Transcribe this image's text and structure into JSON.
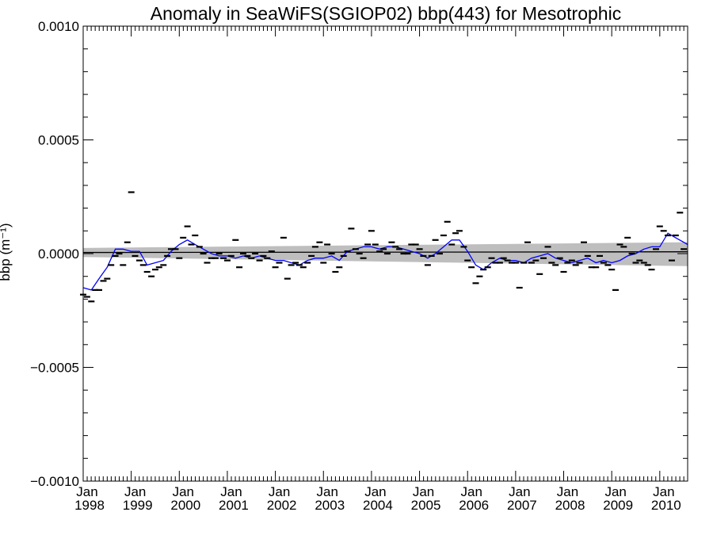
{
  "chart_data": {
    "type": "scatter",
    "title": "Anomaly in SeaWiFS(SGIOP02) bbp(443) for Mesotrophic",
    "ylabel": "bbp (m⁻¹)",
    "xlabel": "",
    "ylim": [
      -0.001,
      0.001
    ],
    "xlim": [
      1998.0,
      2010.58
    ],
    "y_ticks": [
      {
        "value": 0.001,
        "label": "0.0010"
      },
      {
        "value": 0.0005,
        "label": "0.0005"
      },
      {
        "value": 0.0,
        "label": "0.0000"
      },
      {
        "value": -0.0005,
        "label": "−0.0005"
      },
      {
        "value": -0.001,
        "label": "−0.0010"
      }
    ],
    "x_ticks": [
      {
        "value": 1998,
        "month": "Jan",
        "year": "1998"
      },
      {
        "value": 1999,
        "month": "Jan",
        "year": "1999"
      },
      {
        "value": 2000,
        "month": "Jan",
        "year": "2000"
      },
      {
        "value": 2001,
        "month": "Jan",
        "year": "2001"
      },
      {
        "value": 2002,
        "month": "Jan",
        "year": "2002"
      },
      {
        "value": 2003,
        "month": "Jan",
        "year": "2003"
      },
      {
        "value": 2004,
        "month": "Jan",
        "year": "2004"
      },
      {
        "value": 2005,
        "month": "Jan",
        "year": "2005"
      },
      {
        "value": 2006,
        "month": "Jan",
        "year": "2006"
      },
      {
        "value": 2007,
        "month": "Jan",
        "year": "2007"
      },
      {
        "value": 2008,
        "month": "Jan",
        "year": "2008"
      },
      {
        "value": 2009,
        "month": "Jan",
        "year": "2009"
      },
      {
        "value": 2010,
        "month": "Jan",
        "year": "2010"
      }
    ],
    "colors": {
      "points": "#000000",
      "smooth": "#0000ff",
      "trend": "#000000",
      "band": "#bebebe"
    },
    "series": [
      {
        "kind": "monthly-anomaly-markers",
        "x": [
          1998.0,
          1998.08,
          1998.17,
          1998.25,
          1998.33,
          1998.42,
          1998.5,
          1998.58,
          1998.67,
          1998.75,
          1998.83,
          1998.92,
          1999.0,
          1999.08,
          1999.17,
          1999.25,
          1999.33,
          1999.42,
          1999.5,
          1999.58,
          1999.67,
          1999.75,
          1999.83,
          1999.92,
          2000.0,
          2000.08,
          2000.17,
          2000.25,
          2000.33,
          2000.42,
          2000.5,
          2000.58,
          2000.67,
          2000.75,
          2000.83,
          2000.92,
          2001.0,
          2001.08,
          2001.17,
          2001.25,
          2001.33,
          2001.42,
          2001.5,
          2001.58,
          2001.67,
          2001.75,
          2001.83,
          2001.92,
          2002.0,
          2002.08,
          2002.17,
          2002.25,
          2002.33,
          2002.42,
          2002.5,
          2002.58,
          2002.67,
          2002.75,
          2002.83,
          2002.92,
          2003.0,
          2003.08,
          2003.17,
          2003.25,
          2003.33,
          2003.42,
          2003.5,
          2003.58,
          2003.67,
          2003.75,
          2003.83,
          2003.92,
          2004.0,
          2004.08,
          2004.17,
          2004.25,
          2004.33,
          2004.42,
          2004.5,
          2004.58,
          2004.67,
          2004.75,
          2004.83,
          2004.92,
          2005.0,
          2005.08,
          2005.17,
          2005.25,
          2005.33,
          2005.42,
          2005.5,
          2005.58,
          2005.67,
          2005.75,
          2005.83,
          2005.92,
          2006.0,
          2006.08,
          2006.17,
          2006.25,
          2006.33,
          2006.42,
          2006.5,
          2006.58,
          2006.67,
          2006.75,
          2006.83,
          2006.92,
          2007.0,
          2007.08,
          2007.17,
          2007.25,
          2007.33,
          2007.42,
          2007.5,
          2007.58,
          2007.67,
          2007.75,
          2007.83,
          2007.92,
          2008.0,
          2008.08,
          2008.17,
          2008.25,
          2008.33,
          2008.42,
          2008.5,
          2008.58,
          2008.67,
          2008.75,
          2008.83,
          2008.92,
          2009.0,
          2009.08,
          2009.17,
          2009.25,
          2009.33,
          2009.42,
          2009.5,
          2009.58,
          2009.67,
          2009.75,
          2009.83,
          2009.92,
          2010.0,
          2010.08,
          2010.17,
          2010.25,
          2010.33,
          2010.42,
          2010.5
        ],
        "y": [
          -0.00018,
          -0.00019,
          -0.00021,
          -0.00016,
          -0.00016,
          -0.00012,
          -0.00011,
          -5e-05,
          -1e-05,
          0.0,
          -5e-05,
          5e-05,
          0.00027,
          -1e-05,
          -3e-05,
          -5e-05,
          -8e-05,
          -0.0001,
          -7e-05,
          -6e-05,
          -5e-05,
          -1e-05,
          2e-05,
          2e-05,
          -2e-05,
          7e-05,
          0.00012,
          4e-05,
          8e-05,
          3e-05,
          0.0,
          -4e-05,
          -2e-05,
          -2e-05,
          0.0,
          -2e-05,
          -3e-05,
          -1e-05,
          6e-05,
          -6e-05,
          0.0,
          -1e-05,
          -2e-05,
          0.0,
          -3e-05,
          -1e-05,
          -2e-05,
          1e-05,
          -6e-05,
          -4e-05,
          7e-05,
          -0.00011,
          -5e-05,
          -4e-05,
          -5e-05,
          -6e-05,
          -4e-05,
          -1e-05,
          3e-05,
          5e-05,
          -4e-05,
          4e-05,
          0.0,
          -8e-05,
          -6e-05,
          -1e-05,
          1e-05,
          0.00011,
          2e-05,
          0.0,
          -2e-05,
          4e-05,
          0.0001,
          4e-05,
          1e-05,
          2e-05,
          0.0,
          5e-05,
          3e-05,
          2e-05,
          0.0,
          0.0,
          4e-05,
          4e-05,
          2e-05,
          -1e-05,
          -5e-05,
          -1e-05,
          6e-05,
          0.0,
          8e-05,
          0.00014,
          4e-05,
          9e-05,
          0.0001,
          3e-05,
          -3e-05,
          -6e-05,
          -0.00013,
          -0.0001,
          -7e-05,
          -6e-05,
          -2e-05,
          -4e-05,
          -4e-05,
          -2e-05,
          -3e-05,
          -4e-05,
          -4e-05,
          -0.00015,
          -4e-05,
          5e-05,
          -4e-05,
          -3e-05,
          -9e-05,
          -2e-05,
          3e-05,
          -4e-05,
          -5e-05,
          -2e-05,
          -8e-05,
          -4e-05,
          -3e-05,
          -5e-05,
          -4e-05,
          5e-05,
          -1e-05,
          -6e-05,
          -6e-05,
          -1e-05,
          -4e-05,
          -5e-05,
          -7e-05,
          -0.00016,
          4e-05,
          3e-05,
          7e-05,
          0.0,
          -4e-05,
          -3e-05,
          -4e-05,
          -5e-05,
          -7e-05,
          2e-05,
          0.00012,
          0.0001,
          8e-05,
          -3e-05,
          8e-05,
          0.00018,
          2e-05
        ]
      },
      {
        "kind": "smoothed-anomaly",
        "x": [
          1998.0,
          1998.17,
          1998.33,
          1998.5,
          1998.67,
          1998.83,
          1999.0,
          1999.17,
          1999.33,
          1999.5,
          1999.67,
          1999.83,
          2000.0,
          2000.17,
          2000.33,
          2000.5,
          2000.67,
          2000.83,
          2001.0,
          2001.17,
          2001.33,
          2001.5,
          2001.67,
          2001.83,
          2002.0,
          2002.17,
          2002.33,
          2002.5,
          2002.67,
          2002.83,
          2003.0,
          2003.17,
          2003.33,
          2003.5,
          2003.67,
          2003.83,
          2004.0,
          2004.17,
          2004.33,
          2004.5,
          2004.67,
          2004.83,
          2005.0,
          2005.17,
          2005.33,
          2005.5,
          2005.67,
          2005.83,
          2006.0,
          2006.17,
          2006.33,
          2006.5,
          2006.67,
          2006.83,
          2007.0,
          2007.17,
          2007.33,
          2007.5,
          2007.67,
          2007.83,
          2008.0,
          2008.17,
          2008.33,
          2008.5,
          2008.67,
          2008.83,
          2009.0,
          2009.17,
          2009.33,
          2009.5,
          2009.67,
          2009.83,
          2010.0,
          2010.17,
          2010.33,
          2010.5,
          2010.58
        ],
        "y": [
          -0.00015,
          -0.00016,
          -0.00011,
          -6e-05,
          2e-05,
          2e-05,
          1e-05,
          1e-05,
          -5e-05,
          -4e-05,
          -3e-05,
          1e-05,
          4e-05,
          6e-05,
          4e-05,
          2e-05,
          0.0,
          -1e-05,
          -1e-05,
          -2e-05,
          -1e-05,
          -2e-05,
          -1e-05,
          -2e-05,
          -3e-05,
          -3e-05,
          -4e-05,
          -5e-05,
          -3e-05,
          -2e-05,
          -2e-05,
          -1e-05,
          -3e-05,
          1e-05,
          2e-05,
          3e-05,
          3e-05,
          2e-05,
          3e-05,
          3e-05,
          2e-05,
          1e-05,
          0.0,
          -2e-05,
          0.0,
          3e-05,
          6e-05,
          6e-05,
          1e-05,
          -5e-05,
          -7e-05,
          -4e-05,
          -2e-05,
          -3e-05,
          -3e-05,
          -4e-05,
          -2e-05,
          -1e-05,
          0.0,
          -2e-05,
          -3e-05,
          -4e-05,
          -3e-05,
          -2e-05,
          -4e-05,
          -3e-05,
          -4e-05,
          -3e-05,
          -1e-05,
          0.0,
          2e-05,
          3e-05,
          3e-05,
          9e-05,
          7e-05,
          5e-05,
          4e-05
        ]
      },
      {
        "kind": "linear-trend",
        "x": [
          1998.0,
          2010.58
        ],
        "y": [
          5e-06,
          8e-06
        ]
      },
      {
        "kind": "confidence-band",
        "x": [
          1998.0,
          2010.58
        ],
        "upper": [
          2.5e-05,
          5e-05
        ],
        "lower": [
          -1.5e-05,
          -5.5e-05
        ]
      }
    ]
  }
}
